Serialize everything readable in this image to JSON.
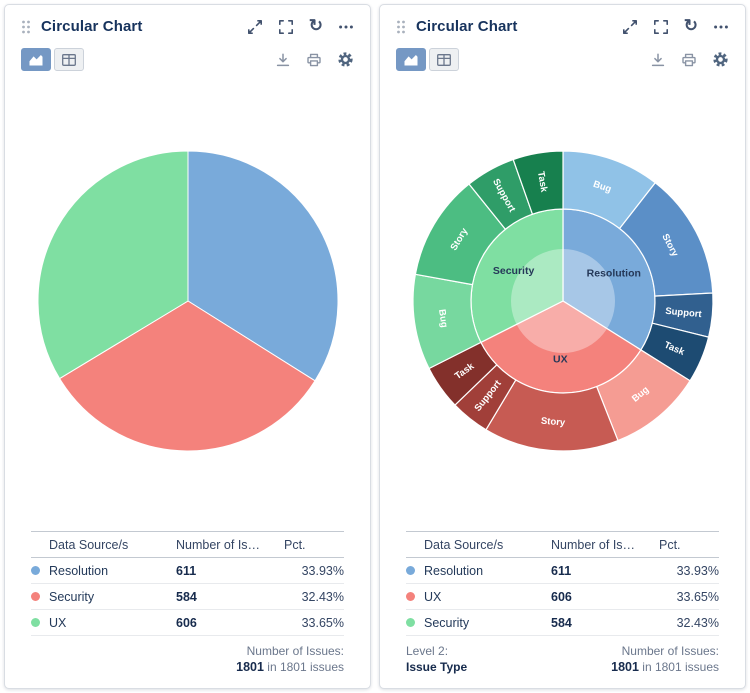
{
  "ui": {
    "accent": "#7598c4",
    "title_color": "#17335d"
  },
  "panels": [
    {
      "title": "Circular Chart",
      "table": {
        "headers": [
          "Data Source/s",
          "Number of Is…",
          "Pct."
        ],
        "rows": [
          {
            "label": "Resolution",
            "value": "611",
            "pct": "33.93%",
            "color": "#79aada"
          },
          {
            "label": "Security",
            "value": "584",
            "pct": "32.43%",
            "color": "#f4827c"
          },
          {
            "label": "UX",
            "value": "606",
            "pct": "33.65%",
            "color": "#7fdfa2"
          }
        ]
      },
      "footer": {
        "label": "Number of Issues:",
        "value": "1801",
        "suffix": "in 1801 issues"
      }
    },
    {
      "title": "Circular Chart",
      "table": {
        "headers": [
          "Data Source/s",
          "Number of Is…",
          "Pct."
        ],
        "rows": [
          {
            "label": "Resolution",
            "value": "611",
            "pct": "33.93%",
            "color": "#79aada"
          },
          {
            "label": "UX",
            "value": "606",
            "pct": "33.65%",
            "color": "#f4827c"
          },
          {
            "label": "Security",
            "value": "584",
            "pct": "32.43%",
            "color": "#7fdfa2"
          }
        ]
      },
      "footer": {
        "label": "Number of Issues:",
        "value": "1801",
        "suffix": "in 1801 issues",
        "level_label": "Level 2:",
        "level_value": "Issue Type"
      }
    }
  ],
  "chart_data": [
    {
      "type": "pie",
      "title": "Circular Chart",
      "categories": [
        "Resolution",
        "Security",
        "UX"
      ],
      "values": [
        611,
        584,
        606
      ],
      "percentages": [
        "33.93%",
        "32.43%",
        "33.65%"
      ],
      "colors": [
        "#79aada",
        "#f4827c",
        "#7fdfa2"
      ],
      "total": 1801,
      "total_label": "1801 in 1801 issues",
      "legend_position": "bottom-table"
    },
    {
      "type": "sunburst",
      "title": "Circular Chart",
      "total": 1801,
      "level_note": {
        "label": "Level 2:",
        "value": "Issue Type"
      },
      "level1": [
        {
          "name": "Resolution",
          "value": 611,
          "pct": "33.93%",
          "color": "#79aada"
        },
        {
          "name": "UX",
          "value": 606,
          "pct": "33.65%",
          "color": "#f4827c"
        },
        {
          "name": "Security",
          "value": 584,
          "pct": "32.43%",
          "color": "#7fdfa2"
        }
      ],
      "level2": [
        {
          "parent": "Resolution",
          "name": "Bug",
          "value": 190,
          "color": "#90c2e7"
        },
        {
          "parent": "Resolution",
          "name": "Story",
          "value": 245,
          "color": "#5b8fc7"
        },
        {
          "parent": "Resolution",
          "name": "Support",
          "value": 85,
          "color": "#31608f"
        },
        {
          "parent": "Resolution",
          "name": "Task",
          "value": 91,
          "color": "#1d4b72"
        },
        {
          "parent": "UX",
          "name": "Bug",
          "value": 182,
          "color": "#f59c93"
        },
        {
          "parent": "UX",
          "name": "Story",
          "value": 262,
          "color": "#c75b53"
        },
        {
          "parent": "UX",
          "name": "Support",
          "value": 76,
          "color": "#a13f39"
        },
        {
          "parent": "UX",
          "name": "Task",
          "value": 86,
          "color": "#83302b"
        },
        {
          "parent": "Security",
          "name": "Bug",
          "value": 185,
          "color": "#77d89f"
        },
        {
          "parent": "Security",
          "name": "Story",
          "value": 205,
          "color": "#4cbd82"
        },
        {
          "parent": "Security",
          "name": "Support",
          "value": 97,
          "color": "#2f9d68"
        },
        {
          "parent": "Security",
          "name": "Task",
          "value": 97,
          "color": "#17804e"
        }
      ]
    }
  ]
}
